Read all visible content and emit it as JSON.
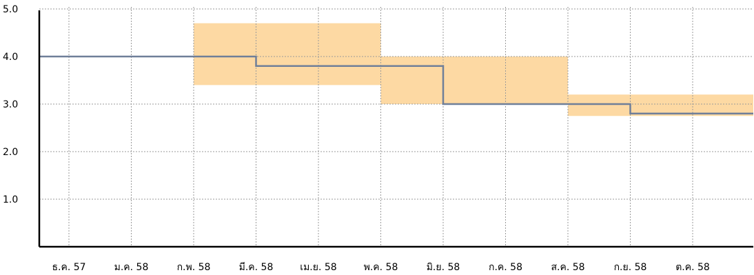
{
  "chart_data": {
    "type": "line",
    "title": "",
    "xlabel": "",
    "ylabel": "",
    "ylim": [
      0,
      5
    ],
    "grid": true,
    "y_ticks": [
      "5.0",
      "4.0",
      "3.0",
      "2.0",
      "1.0"
    ],
    "y_tick_values": [
      5,
      4,
      3,
      2,
      1
    ],
    "categories": [
      "ธ.ค. 57",
      "ม.ค. 58",
      "ก.พ. 58",
      "มี.ค. 58",
      "เม.ย. 58",
      "พ.ค. 58",
      "มิ.ย. 58",
      "ก.ค. 58",
      "ส.ค. 58",
      "ก.ย. 58",
      "ต.ค. 58"
    ],
    "series": [
      {
        "step": true,
        "x_start": -0.5,
        "x_end": 11.0,
        "steps": [
          {
            "from": -0.5,
            "to": 3.0,
            "value": 4.0
          },
          {
            "from": 3.0,
            "to": 6.0,
            "value": 3.8
          },
          {
            "from": 6.0,
            "to": 9.0,
            "value": 3.0
          },
          {
            "from": 9.0,
            "to": 11.0,
            "value": 2.8
          }
        ]
      }
    ],
    "ranges": [
      {
        "from": 2.0,
        "to": 5.0,
        "low": 3.4,
        "high": 4.7
      },
      {
        "from": 5.0,
        "to": 8.0,
        "low": 3.0,
        "high": 4.0
      },
      {
        "from": 8.0,
        "to": 11.0,
        "low": 2.75,
        "high": 3.2
      }
    ],
    "colors": {
      "line": "#6f7f99",
      "band": "#fdd9a3",
      "grid": "#9a9a9a",
      "axis": "#000000"
    }
  }
}
